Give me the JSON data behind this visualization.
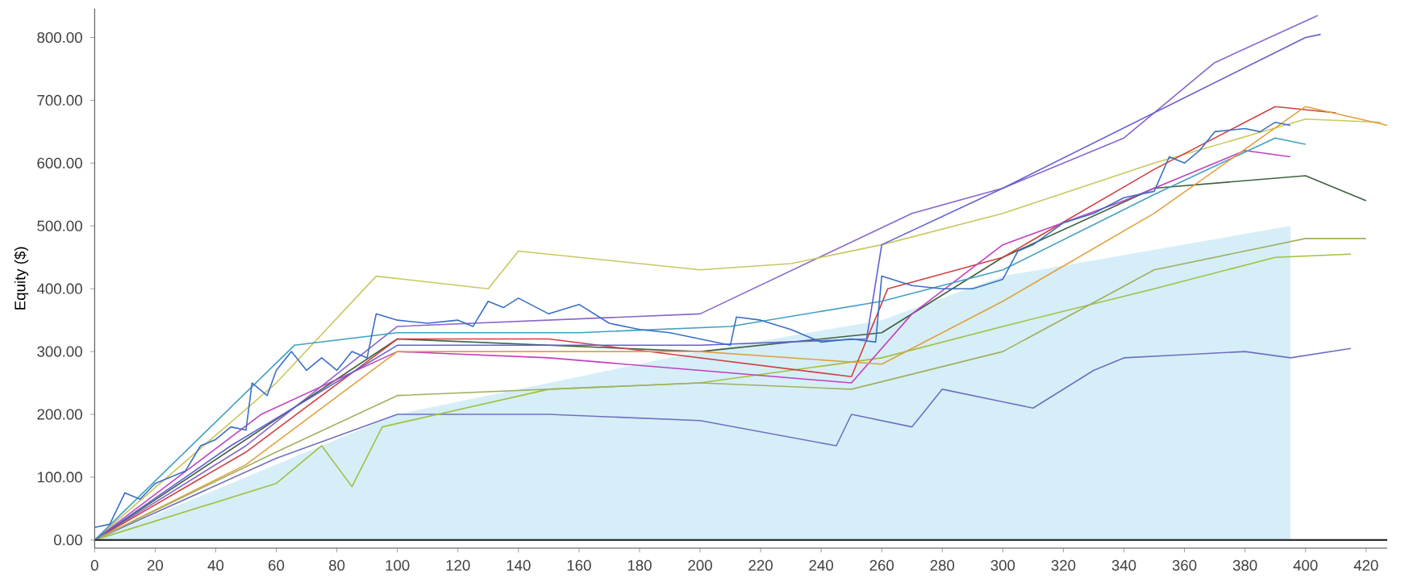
{
  "chart_data": {
    "type": "line",
    "ylabel": "Equity ($)",
    "xlim": [
      0,
      427
    ],
    "ylim": [
      -13,
      846
    ],
    "xticks": [
      0,
      20,
      40,
      60,
      80,
      100,
      120,
      140,
      160,
      180,
      200,
      220,
      240,
      260,
      280,
      300,
      320,
      340,
      360,
      380,
      400,
      420
    ],
    "yticks": [
      {
        "value": 0,
        "label": "0.00"
      },
      {
        "value": 100,
        "label": "100.00"
      },
      {
        "value": 200,
        "label": "200.00"
      },
      {
        "value": 300,
        "label": "300.00"
      },
      {
        "value": 400,
        "label": "400.00"
      },
      {
        "value": 500,
        "label": "500.00"
      },
      {
        "value": 600,
        "label": "600.00"
      },
      {
        "value": 700,
        "label": "700.00"
      },
      {
        "value": 800,
        "label": "800.00"
      }
    ],
    "ref_lines": [
      {
        "axis": "y",
        "value": 0,
        "color": "#303030"
      }
    ],
    "grid": false,
    "series": [
      {
        "type": "area",
        "color": "#d6eef8",
        "x": [
          0,
          60,
          100,
          200,
          260,
          300,
          395
        ],
        "values": [
          0,
          120,
          200,
          300,
          350,
          420,
          500
        ]
      },
      {
        "type": "line",
        "color": "#8866cc",
        "x": [
          0,
          50,
          100,
          200,
          270,
          300,
          340,
          370,
          404
        ],
        "values": [
          0,
          150,
          340,
          360,
          520,
          560,
          640,
          760,
          835
        ]
      },
      {
        "type": "line",
        "color": "#7070c0",
        "x": [
          0,
          60,
          100,
          150,
          200,
          245,
          250,
          270,
          280,
          300,
          310,
          330,
          340,
          360,
          380,
          395,
          415
        ],
        "values": [
          0,
          130,
          200,
          200,
          190,
          150,
          200,
          180,
          240,
          220,
          210,
          270,
          290,
          295,
          300,
          290,
          305
        ]
      },
      {
        "type": "line",
        "color": "#a0c040",
        "x": [
          0,
          60,
          75,
          85,
          95,
          150,
          200,
          260,
          300,
          350,
          390,
          415
        ],
        "values": [
          0,
          90,
          150,
          85,
          180,
          240,
          250,
          290,
          340,
          400,
          450,
          455
        ]
      },
      {
        "type": "line",
        "color": "#c8c860",
        "x": [
          0,
          60,
          93,
          130,
          140,
          200,
          230,
          260,
          300,
          350,
          400,
          425
        ],
        "values": [
          0,
          250,
          420,
          400,
          460,
          430,
          440,
          470,
          520,
          600,
          670,
          665
        ]
      },
      {
        "type": "line",
        "color": "#406040",
        "x": [
          0,
          100,
          200,
          260,
          300,
          350,
          400,
          420
        ],
        "values": [
          0,
          320,
          300,
          330,
          450,
          560,
          580,
          540
        ]
      },
      {
        "type": "line",
        "color": "#d04040",
        "x": [
          0,
          50,
          100,
          150,
          200,
          250,
          262,
          300,
          350,
          390,
          410
        ],
        "values": [
          0,
          140,
          320,
          320,
          290,
          260,
          400,
          450,
          590,
          690,
          680
        ]
      },
      {
        "type": "line",
        "color": "#c040c0",
        "x": [
          0,
          55,
          100,
          150,
          200,
          250,
          270,
          300,
          340,
          380,
          395
        ],
        "values": [
          0,
          200,
          300,
          290,
          270,
          250,
          360,
          470,
          540,
          620,
          610
        ]
      },
      {
        "type": "line",
        "color": "#40a0c0",
        "x": [
          0,
          66,
          100,
          160,
          210,
          260,
          300,
          350,
          390,
          400
        ],
        "values": [
          0,
          310,
          330,
          330,
          340,
          380,
          430,
          550,
          640,
          630
        ]
      },
      {
        "type": "line",
        "color": "#e0a040",
        "x": [
          0,
          50,
          100,
          200,
          260,
          300,
          350,
          400,
          427
        ],
        "values": [
          0,
          120,
          300,
          300,
          280,
          380,
          520,
          690,
          660
        ]
      },
      {
        "type": "line",
        "color": "#a0b060",
        "x": [
          0,
          60,
          100,
          200,
          250,
          300,
          350,
          400,
          420
        ],
        "values": [
          0,
          140,
          230,
          250,
          240,
          300,
          430,
          480,
          480
        ]
      },
      {
        "type": "line",
        "color": "#6060d0",
        "x": [
          0,
          45,
          100,
          200,
          255,
          260,
          300,
          350,
          400,
          405
        ],
        "values": [
          0,
          150,
          310,
          310,
          320,
          470,
          560,
          680,
          800,
          805
        ]
      },
      {
        "type": "line",
        "color": "#3a6fc4",
        "x": [
          0,
          5,
          10,
          15,
          20,
          30,
          35,
          40,
          45,
          50,
          52,
          57,
          60,
          65,
          70,
          75,
          80,
          85,
          90,
          93,
          100,
          110,
          120,
          125,
          130,
          135,
          140,
          150,
          160,
          170,
          180,
          190,
          200,
          210,
          212,
          220,
          230,
          240,
          250,
          258,
          260,
          270,
          280,
          290,
          300,
          305,
          310,
          320,
          330,
          340,
          350,
          355,
          360,
          365,
          370,
          380,
          385,
          390,
          395
        ],
        "values": [
          20,
          25,
          75,
          65,
          90,
          110,
          150,
          160,
          180,
          175,
          250,
          230,
          270,
          300,
          270,
          290,
          270,
          300,
          290,
          360,
          350,
          345,
          350,
          340,
          380,
          370,
          385,
          360,
          375,
          345,
          335,
          330,
          320,
          310,
          355,
          350,
          335,
          315,
          320,
          315,
          420,
          405,
          400,
          400,
          415,
          460,
          470,
          505,
          520,
          545,
          555,
          610,
          600,
          620,
          650,
          655,
          650,
          665,
          660
        ]
      }
    ]
  }
}
